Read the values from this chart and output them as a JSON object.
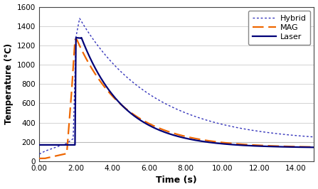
{
  "title": "",
  "xlabel": "Time (s)",
  "ylabel": "Temperature (°C)",
  "xlim": [
    0.0,
    15.0
  ],
  "ylim": [
    0,
    1600
  ],
  "xticks": [
    0.0,
    2.0,
    4.0,
    6.0,
    8.0,
    10.0,
    12.0,
    14.0
  ],
  "xticklabels": [
    "0.00",
    "2.00",
    "4.00",
    "6.00",
    "8.00",
    "10.00",
    "12.00",
    "14.00"
  ],
  "yticks": [
    0,
    200,
    400,
    600,
    800,
    1000,
    1200,
    1400,
    1600
  ],
  "hline_y": 200,
  "hline_color": "#bbbbbb",
  "hybrid_color": "#3333bb",
  "mag_color": "#ee6600",
  "laser_color": "#000077",
  "background_color": "#ffffff",
  "legend_labels": [
    "Hybrid",
    "MAG",
    "Laser"
  ],
  "legend_loc": "upper right",
  "grid_color": "#cccccc"
}
